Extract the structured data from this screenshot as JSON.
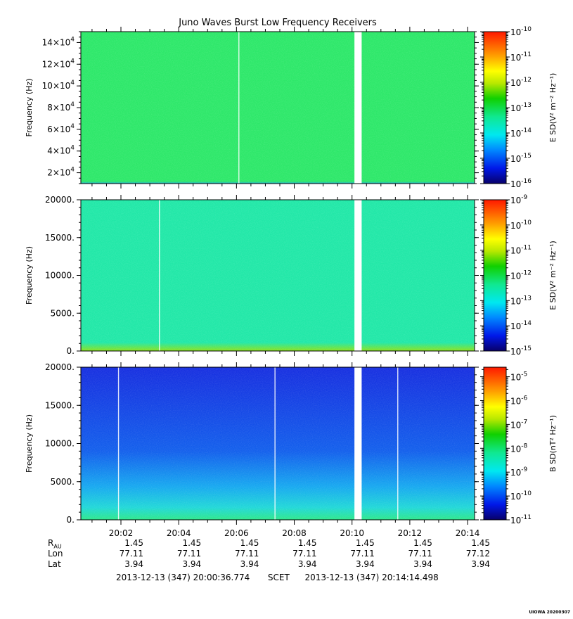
{
  "title": "Juno Waves Burst Low Frequency Receivers",
  "chart_data": [
    {
      "type": "heatmap",
      "ylabel": "Frequency (Hz)",
      "ylim": [
        10000,
        150000
      ],
      "yticks": [
        {
          "value": 20000,
          "mant": "2x10",
          "exp": "4"
        },
        {
          "value": 40000,
          "mant": "4x10",
          "exp": "4"
        },
        {
          "value": 60000,
          "mant": "6x10",
          "exp": "4"
        },
        {
          "value": 80000,
          "mant": "8x10",
          "exp": "4"
        },
        {
          "value": 100000,
          "mant": "10x10",
          "exp": "4"
        },
        {
          "value": 120000,
          "mant": "12x10",
          "exp": "4"
        },
        {
          "value": 140000,
          "mant": "14x10",
          "exp": "4"
        }
      ],
      "colorbar": {
        "label": "E SD(V² m⁻² Hz⁻¹)",
        "log_range": [
          -16,
          -10
        ],
        "ticks": [
          {
            "exp": "-10",
            "text": "10"
          },
          {
            "exp": "-11",
            "text": "10"
          },
          {
            "exp": "-12",
            "text": "10"
          },
          {
            "exp": "-13",
            "text": "10"
          },
          {
            "exp": "-14",
            "text": "10"
          },
          {
            "exp": "-15",
            "text": "10"
          },
          {
            "exp": "-16",
            "text": "10"
          }
        ]
      },
      "background_color": "#2ee86a",
      "bottom_band_color": "#1fa6d6",
      "white_lines": [
        "20:06:05"
      ],
      "data_gap": [
        "20:10:05",
        "20:10:20"
      ]
    },
    {
      "type": "heatmap",
      "ylabel": "Frequency (Hz)",
      "ylim": [
        0,
        20000
      ],
      "yticks": [
        {
          "value": 0,
          "text": "0."
        },
        {
          "value": 5000,
          "text": "5000."
        },
        {
          "value": 10000,
          "text": "10000."
        },
        {
          "value": 15000,
          "text": "15000."
        },
        {
          "value": 20000,
          "text": "20000."
        }
      ],
      "colorbar": {
        "label": "E SD(V² m⁻² Hz⁻¹)",
        "log_range": [
          -15,
          -9
        ],
        "ticks": [
          {
            "exp": "-9",
            "text": "10"
          },
          {
            "exp": "-10",
            "text": "10"
          },
          {
            "exp": "-11",
            "text": "10"
          },
          {
            "exp": "-12",
            "text": "10"
          },
          {
            "exp": "-13",
            "text": "10"
          },
          {
            "exp": "-14",
            "text": "10"
          },
          {
            "exp": "-15",
            "text": "10"
          }
        ]
      },
      "background_color": "#22e8a8",
      "bottom_band_color": "#8de21c",
      "white_lines": [
        "20:03:20"
      ],
      "data_gap": [
        "20:10:05",
        "20:10:20"
      ]
    },
    {
      "type": "heatmap",
      "ylabel": "Frequency (Hz)",
      "ylim": [
        0,
        20000
      ],
      "yticks": [
        {
          "value": 0,
          "text": "0."
        },
        {
          "value": 5000,
          "text": "5000."
        },
        {
          "value": 10000,
          "text": "10000."
        },
        {
          "value": 15000,
          "text": "15000."
        },
        {
          "value": 20000,
          "text": "20000."
        }
      ],
      "colorbar": {
        "label": "B SD(nT² Hz⁻¹)",
        "log_range": [
          -11,
          -4.6
        ],
        "ticks": [
          {
            "exp": "-5",
            "text": "10"
          },
          {
            "exp": "-6",
            "text": "10"
          },
          {
            "exp": "-7",
            "text": "10"
          },
          {
            "exp": "-8",
            "text": "10"
          },
          {
            "exp": "-9",
            "text": "10"
          },
          {
            "exp": "-10",
            "text": "10"
          },
          {
            "exp": "-11",
            "text": "10"
          }
        ]
      },
      "background_color": "#1830e0",
      "bottom_band_color": "#2fe88c",
      "white_lines": [
        "20:01:55",
        "20:07:20",
        "20:11:35"
      ],
      "data_gap": [
        "20:10:05",
        "20:10:20"
      ]
    }
  ],
  "time_axis": {
    "start": "20:00:36.774",
    "end": "20:14:14.498",
    "tick_labels": [
      "20:02",
      "20:04",
      "20:06",
      "20:08",
      "20:10",
      "20:12",
      "20:14"
    ]
  },
  "ephemeris": {
    "rows": [
      {
        "label": "R",
        "sub": "AU",
        "values": [
          "1.45",
          "1.45",
          "1.45",
          "1.45",
          "1.45",
          "1.45",
          "1.45"
        ]
      },
      {
        "label": "Lon",
        "sub": "",
        "values": [
          "77.11",
          "77.11",
          "77.11",
          "77.11",
          "77.11",
          "77.11",
          "77.12"
        ]
      },
      {
        "label": "Lat",
        "sub": "",
        "values": [
          "3.94",
          "3.94",
          "3.94",
          "3.94",
          "3.94",
          "3.94",
          "3.94"
        ]
      }
    ]
  },
  "footer": {
    "start_label": "2013-12-13 (347) 20:00:36.774",
    "scet_label": "SCET",
    "end_label": "2013-12-13 (347) 20:14:14.498"
  },
  "watermark": "UIOWA 20200307"
}
